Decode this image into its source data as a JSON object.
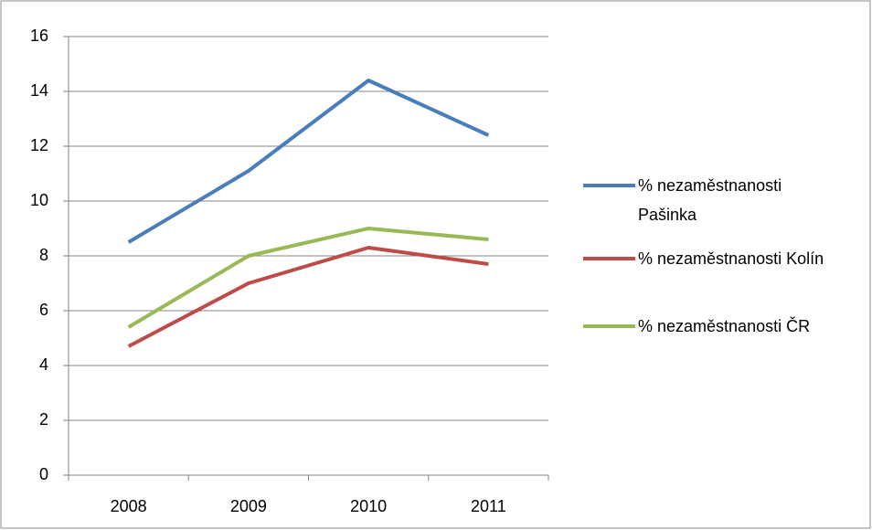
{
  "chart_data": {
    "type": "line",
    "categories": [
      "2008",
      "2009",
      "2010",
      "2011"
    ],
    "series": [
      {
        "name": "% nezaměstnanosti Pašinka",
        "color": "#4a7ebb",
        "values": [
          8.5,
          11.1,
          14.4,
          12.4
        ]
      },
      {
        "name": "% nezaměstnanosti Kolín",
        "color": "#be4b48",
        "values": [
          4.7,
          7.0,
          8.3,
          7.7
        ]
      },
      {
        "name": "% nezaměstnanosti ČR",
        "color": "#98b954",
        "values": [
          5.4,
          8.0,
          9.0,
          8.6
        ]
      }
    ],
    "ylim": [
      0,
      16
    ],
    "yticks": [
      0,
      2,
      4,
      6,
      8,
      10,
      12,
      14,
      16
    ],
    "grid": true,
    "legend": "right"
  }
}
